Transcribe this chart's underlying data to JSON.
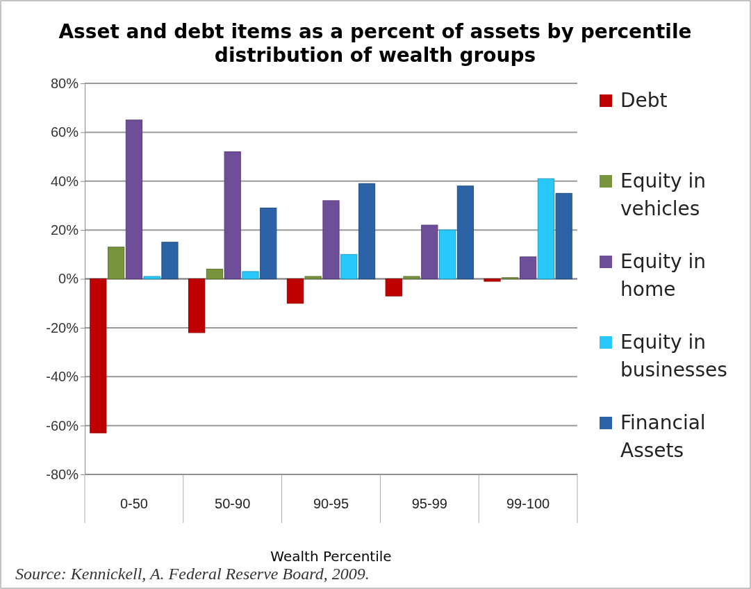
{
  "chart_data": {
    "type": "bar",
    "title": "Asset and debt items as a percent of assets by percentile distribution of wealth groups",
    "xlabel": "Wealth Percentile",
    "annotations": [
      "Source:  Kennickell, A. Federal Reserve Board, 2009."
    ],
    "categories": [
      "0-50",
      "50-90",
      "90-95",
      "95-99",
      "99-100"
    ],
    "series": [
      {
        "name": "Debt",
        "color": "#c00000",
        "values": [
          -63,
          -22,
          -10,
          -7,
          -1
        ]
      },
      {
        "name": "Equity in vehicles",
        "color": "#77933c",
        "values": [
          13,
          4,
          1,
          1,
          0.5
        ]
      },
      {
        "name": "Equity in home",
        "color": "#6f4e99",
        "values": [
          65,
          52,
          32,
          22,
          9
        ]
      },
      {
        "name": "Equity in businesses",
        "color": "#29c8fa",
        "values": [
          1,
          3,
          10,
          20,
          41
        ]
      },
      {
        "name": "Financial Assets",
        "color": "#2c63a6",
        "values": [
          15,
          29,
          39,
          38,
          35
        ]
      }
    ],
    "ylim": [
      -80,
      80
    ],
    "yticks": [
      {
        "value": -80,
        "label": "-80%"
      },
      {
        "value": -60,
        "label": "-60%"
      },
      {
        "value": -40,
        "label": "-40%"
      },
      {
        "value": -20,
        "label": "-20%"
      },
      {
        "value": 0,
        "label": "0%"
      },
      {
        "value": 20,
        "label": "20%"
      },
      {
        "value": 40,
        "label": "40%"
      },
      {
        "value": 60,
        "label": "60%"
      },
      {
        "value": 80,
        "label": "80%"
      }
    ],
    "grid": "y",
    "legend": "right"
  }
}
